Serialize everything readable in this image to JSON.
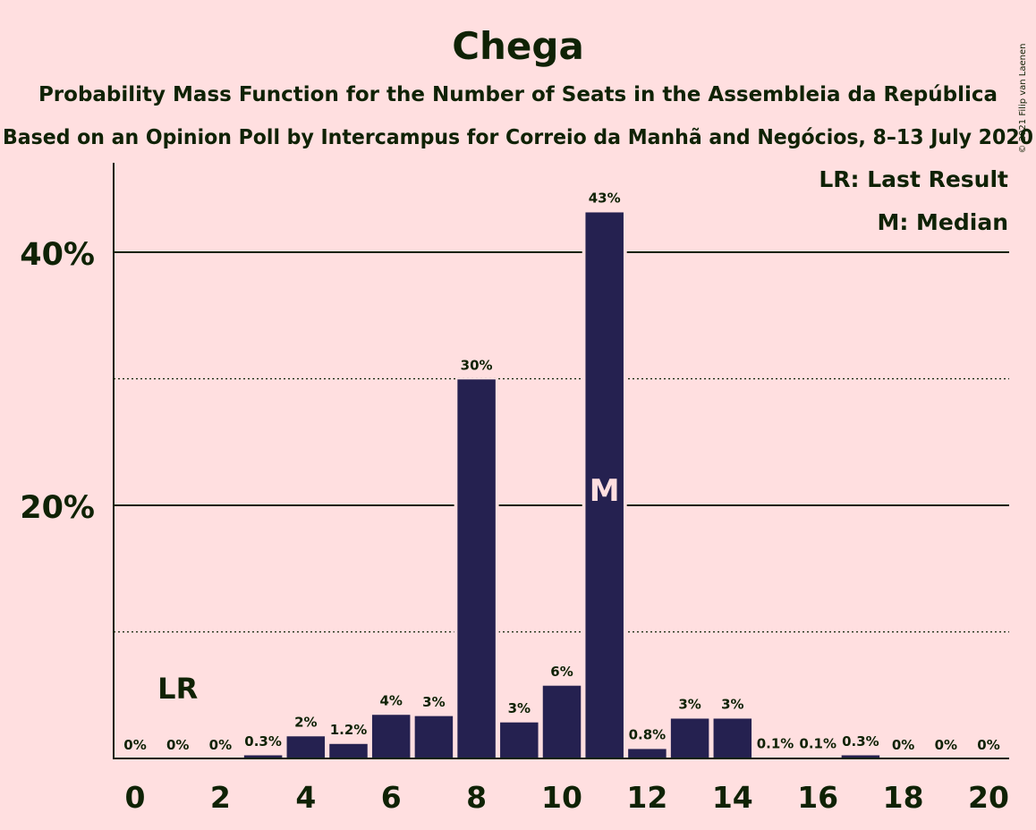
{
  "colors": {
    "background": "#ffdfe0",
    "bar": "#252150",
    "text": "#0f2205",
    "median_label": "#ffdfe0"
  },
  "chart_data": {
    "type": "bar",
    "title": "Chega",
    "subtitle": "Probability Mass Function for the Number of Seats in the Assembleia da República",
    "subtitle2": "Based on an Opinion Poll by Intercampus for Correio da Manhã and Negócios, 8–13 July 2020",
    "copyright": "© 2021 Filip van Laenen",
    "xlabel": "",
    "ylabel": "",
    "x": [
      0,
      1,
      2,
      3,
      4,
      5,
      6,
      7,
      8,
      9,
      10,
      11,
      12,
      13,
      14,
      15,
      16,
      17,
      18,
      19,
      20
    ],
    "values": [
      0,
      0,
      0,
      0.3,
      1.8,
      1.2,
      3.5,
      3.4,
      30.0,
      2.9,
      5.8,
      43.2,
      0.8,
      3.2,
      3.2,
      0.1,
      0.1,
      0.3,
      0,
      0,
      0
    ],
    "data_labels": [
      "0%",
      "0%",
      "0%",
      "0.3%",
      "2%",
      "1.2%",
      "4%",
      "3%",
      "30%",
      "3%",
      "6%",
      "43%",
      "0.8%",
      "3%",
      "3%",
      "0.1%",
      "0.1%",
      "0.3%",
      "0%",
      "0%",
      "0%"
    ],
    "x_ticks": [
      "0",
      "2",
      "4",
      "6",
      "8",
      "10",
      "12",
      "14",
      "16",
      "18",
      "20"
    ],
    "y_ticks": [
      "20%",
      "40%"
    ],
    "ylim": [
      0,
      47
    ],
    "grid": "solid lines at 20% and 40%, dotted lines at 10% and 30%",
    "legend": [
      "LR: Last Result",
      "M: Median"
    ],
    "legend_position": "top-right",
    "last_result": {
      "x": 1,
      "label": "LR"
    },
    "median": {
      "x": 11,
      "label": "M"
    }
  }
}
